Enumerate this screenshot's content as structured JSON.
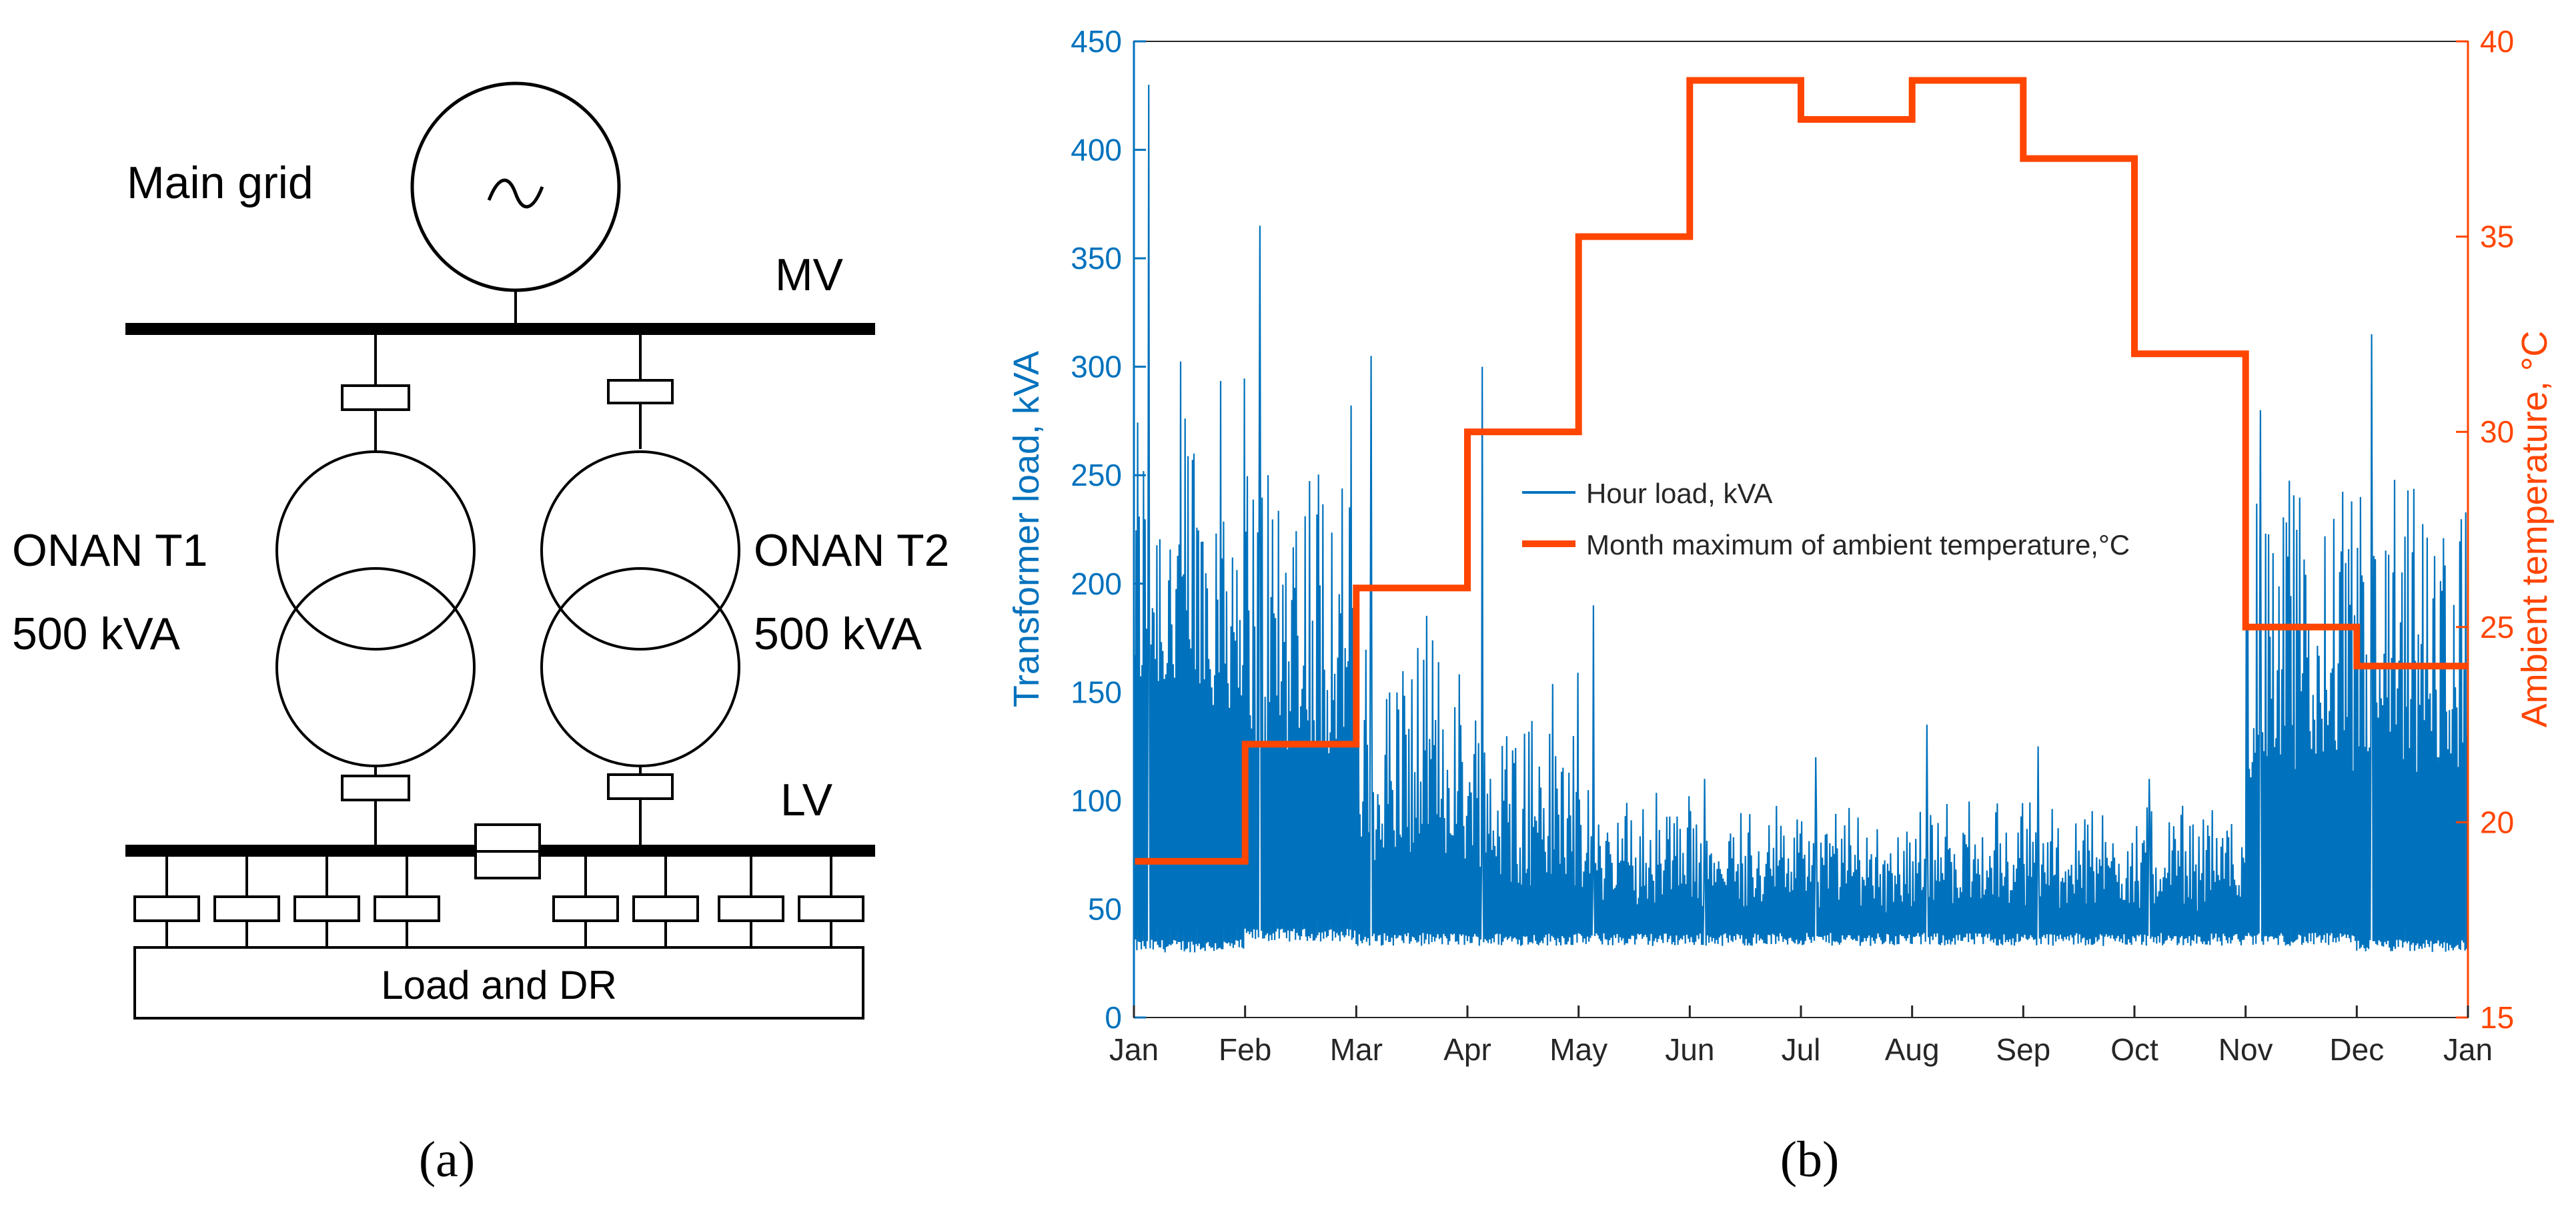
{
  "diagram": {
    "main_grid_label": "Main grid",
    "generator_symbol": "~",
    "mv_label": "MV",
    "lv_label": "LV",
    "t1_name": "ONAN T1",
    "t1_rating": "500 kVA",
    "t2_name": "ONAN T2",
    "t2_rating": "500 kVA",
    "load_label": "Load and DR"
  },
  "panel_labels": {
    "a": "(a)",
    "b": "(b)"
  },
  "chart_data": {
    "type": "line",
    "title": "",
    "x_ticks": [
      "Jan",
      "Feb",
      "Mar",
      "Apr",
      "May",
      "Jun",
      "Jul",
      "Aug",
      "Sep",
      "Oct",
      "Nov",
      "Dec",
      "Jan"
    ],
    "y_left": {
      "label": "Transformer load, kVA",
      "lim": [
        0,
        450
      ],
      "ticks": [
        0,
        50,
        100,
        150,
        200,
        250,
        300,
        350,
        400,
        450
      ]
    },
    "y_right": {
      "label": "Ambient temperature, °C",
      "lim": [
        15,
        40
      ],
      "ticks": [
        15,
        20,
        25,
        30,
        35,
        40
      ]
    },
    "colors": {
      "load": "#0072BD",
      "temperature": "#FF4500",
      "left_axis": "#0072BD",
      "right_axis": "#FF4500"
    },
    "legend": {
      "position": "center",
      "entries": [
        "Hour load, kVA",
        "Month maximum of ambient temperature,°C"
      ]
    },
    "series": [
      {
        "name": "Hour load, kVA",
        "axis": "left",
        "kind": "hourly-noise",
        "monthly_profile": [
          {
            "month": "Jan",
            "base": 140,
            "amplitude": 110,
            "min": 30,
            "peak": 430
          },
          {
            "month": "Feb",
            "base": 120,
            "amplitude": 110,
            "min": 35,
            "peak": 365
          },
          {
            "month": "Mar",
            "base": 70,
            "amplitude": 70,
            "min": 33,
            "peak": 305
          },
          {
            "month": "Apr",
            "base": 60,
            "amplitude": 60,
            "min": 33,
            "peak": 300
          },
          {
            "month": "May",
            "base": 50,
            "amplitude": 30,
            "min": 33,
            "peak": 190
          },
          {
            "month": "Jun",
            "base": 50,
            "amplitude": 25,
            "min": 33,
            "peak": 110
          },
          {
            "month": "Jul",
            "base": 48,
            "amplitude": 25,
            "min": 33,
            "peak": 120
          },
          {
            "month": "Aug",
            "base": 50,
            "amplitude": 25,
            "min": 33,
            "peak": 135
          },
          {
            "month": "Sep",
            "base": 50,
            "amplitude": 25,
            "min": 33,
            "peak": 125
          },
          {
            "month": "Oct",
            "base": 48,
            "amplitude": 25,
            "min": 33,
            "peak": 110
          },
          {
            "month": "Nov",
            "base": 110,
            "amplitude": 90,
            "min": 33,
            "peak": 280
          },
          {
            "month": "Dec",
            "base": 110,
            "amplitude": 90,
            "min": 30,
            "peak": 315
          }
        ]
      },
      {
        "name": "Month maximum of ambient temperature,°C",
        "axis": "right",
        "kind": "step",
        "values": [
          19,
          22,
          26,
          30,
          35,
          39,
          38,
          39,
          37,
          32,
          25,
          24
        ]
      }
    ]
  }
}
